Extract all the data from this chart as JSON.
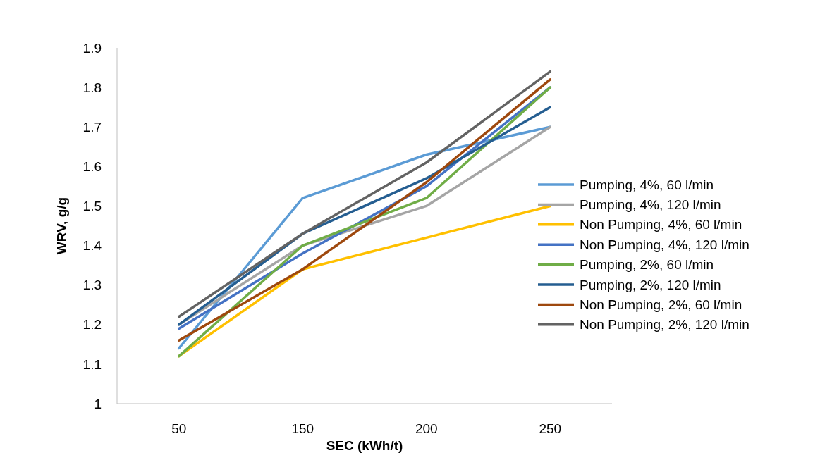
{
  "chart_data": {
    "type": "line",
    "xlabel": "SEC (kWh/t)",
    "ylabel": "WRV, g/g",
    "categories": [
      "50",
      "150",
      "200",
      "250"
    ],
    "ylim": [
      1,
      1.9
    ],
    "yticks": [
      1,
      1.1,
      1.2,
      1.3,
      1.4,
      1.5,
      1.6,
      1.7,
      1.8,
      1.9
    ],
    "grid": false,
    "legend": "right",
    "marker": "none",
    "line_style": "solid",
    "series": [
      {
        "name": "Pumping, 4%, 60 l/min",
        "color": "#5b9bd5",
        "values": [
          1.14,
          1.52,
          1.63,
          1.7
        ]
      },
      {
        "name": "Pumping, 4%, 120 l/min",
        "color": "#a5a5a5",
        "values": [
          1.2,
          1.4,
          1.5,
          1.7
        ]
      },
      {
        "name": "Non Pumping, 4%, 60 l/min",
        "color": "#ffc000",
        "values": [
          1.12,
          1.34,
          1.42,
          1.5
        ]
      },
      {
        "name": "Non Pumping, 4%, 120 l/min",
        "color": "#4472c4",
        "values": [
          1.19,
          1.38,
          1.55,
          1.8
        ]
      },
      {
        "name": "Pumping, 2%, 60 l/min",
        "color": "#70ad47",
        "values": [
          1.12,
          1.4,
          1.52,
          1.8
        ]
      },
      {
        "name": "Pumping, 2%, 120 l/min",
        "color": "#255e91",
        "values": [
          1.2,
          1.43,
          1.57,
          1.75
        ]
      },
      {
        "name": "Non Pumping, 2%, 60 l/min",
        "color": "#9e480e",
        "values": [
          1.16,
          1.34,
          1.56,
          1.82
        ]
      },
      {
        "name": "Non Pumping, 2%, 120 l/min",
        "color": "#636363",
        "values": [
          1.22,
          1.43,
          1.61,
          1.84
        ]
      }
    ]
  }
}
